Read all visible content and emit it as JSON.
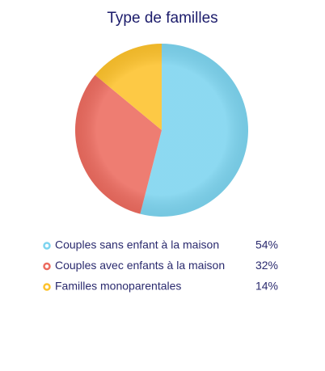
{
  "chart_data": {
    "type": "pie",
    "title": "Type de familles",
    "categories": [
      "Couples sans enfant à la maison",
      "Couples avec enfants à la maison",
      "Familles monoparentales"
    ],
    "values": [
      54,
      32,
      14
    ],
    "value_labels": [
      "54%",
      "32%",
      "14%"
    ],
    "colors": [
      "#7dd4ef",
      "#ec6b5f",
      "#fdc22c"
    ]
  }
}
